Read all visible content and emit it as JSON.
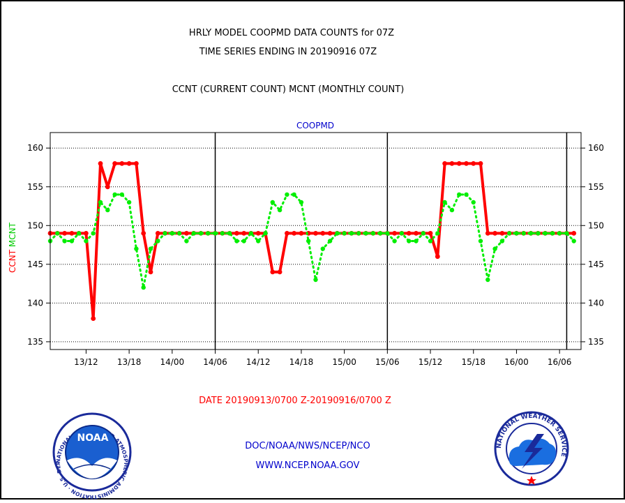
{
  "header": {
    "title_line1": "HRLY MODEL COOPMD DATA COUNTS for 07Z",
    "title_line2": "TIME SERIES ENDING IN 20190916 07Z",
    "subtitle": "CCNT (CURRENT COUNT) MCNT (MONTHLY COUNT)"
  },
  "footer": {
    "date_range": "DATE 20190913/0700 Z-20190916/0700 Z",
    "org_line": "DOC/NOAA/NWS/NCEP/NCO",
    "url": "WWW.NCEP.NOAA.GOV"
  },
  "logos": {
    "noaa_text": "NOAA",
    "noaa_ring_text": "NATIONAL OCEANIC AND ATMOSPHERIC ADMINISTRATION · U.S. DEPARTMENT OF COMMERCE",
    "nws_ring_text": "NATIONAL WEATHER SERVICE"
  },
  "colors": {
    "ccnt": "#ff0000",
    "mcnt": "#00ee00",
    "plot_label": "#0000cc",
    "grid": "#000000"
  },
  "chart_data": {
    "type": "line",
    "title": "COOPMD",
    "ylabel_parts": [
      {
        "text": "CCNT",
        "color": "#ff0000"
      },
      {
        "text": "MCNT",
        "color": "#00ee00"
      }
    ],
    "xlabel": "DATE 20190913/0700 Z-20190916/0700 Z",
    "ylim": [
      134,
      162
    ],
    "yticks": [
      135,
      140,
      145,
      150,
      155,
      160
    ],
    "grid": true,
    "x_domain": [
      "13/07",
      "16/09"
    ],
    "xticks": [
      "13/12",
      "13/18",
      "14/00",
      "14/06",
      "14/12",
      "14/18",
      "15/00",
      "15/06",
      "15/12",
      "15/18",
      "16/00",
      "16/06"
    ],
    "day_boundaries": [
      "14/06",
      "15/06",
      "16/07"
    ],
    "x": [
      "13/07",
      "13/08",
      "13/09",
      "13/10",
      "13/11",
      "13/12",
      "13/13",
      "13/14",
      "13/15",
      "13/16",
      "13/17",
      "13/18",
      "13/19",
      "13/20",
      "13/21",
      "13/22",
      "13/23",
      "14/00",
      "14/01",
      "14/02",
      "14/03",
      "14/04",
      "14/05",
      "14/06",
      "14/07",
      "14/08",
      "14/09",
      "14/10",
      "14/11",
      "14/12",
      "14/13",
      "14/14",
      "14/15",
      "14/16",
      "14/17",
      "14/18",
      "14/19",
      "14/20",
      "14/21",
      "14/22",
      "14/23",
      "15/00",
      "15/01",
      "15/02",
      "15/03",
      "15/04",
      "15/05",
      "15/06",
      "15/07",
      "15/08",
      "15/09",
      "15/10",
      "15/11",
      "15/12",
      "15/13",
      "15/14",
      "15/15",
      "15/16",
      "15/17",
      "15/18",
      "15/19",
      "15/20",
      "15/21",
      "15/22",
      "15/23",
      "16/00",
      "16/01",
      "16/02",
      "16/03",
      "16/04",
      "16/05",
      "16/06",
      "16/07",
      "16/08"
    ],
    "series": [
      {
        "name": "CCNT",
        "color": "#ff0000",
        "style": "solid",
        "values": [
          149,
          149,
          149,
          149,
          149,
          149,
          138,
          158,
          155,
          158,
          158,
          158,
          158,
          149,
          144,
          149,
          149,
          149,
          149,
          149,
          149,
          149,
          149,
          149,
          149,
          149,
          149,
          149,
          149,
          149,
          149,
          144,
          144,
          149,
          149,
          149,
          149,
          149,
          149,
          149,
          149,
          149,
          149,
          149,
          149,
          149,
          149,
          149,
          149,
          149,
          149,
          149,
          149,
          149,
          146,
          158,
          158,
          158,
          158,
          158,
          158,
          149,
          149,
          149,
          149,
          149,
          149,
          149,
          149,
          149,
          149,
          149,
          149,
          149
        ]
      },
      {
        "name": "MCNT",
        "color": "#00ee00",
        "style": "dotted",
        "values": [
          148,
          149,
          148,
          148,
          149,
          148,
          149,
          153,
          152,
          154,
          154,
          153,
          147,
          142,
          147,
          148,
          149,
          149,
          149,
          148,
          149,
          149,
          149,
          149,
          149,
          149,
          148,
          148,
          149,
          148,
          149,
          153,
          152,
          154,
          154,
          153,
          148,
          143,
          147,
          148,
          149,
          149,
          149,
          149,
          149,
          149,
          149,
          149,
          148,
          149,
          148,
          148,
          149,
          148,
          149,
          153,
          152,
          154,
          154,
          153,
          148,
          143,
          147,
          148,
          149,
          149,
          149,
          149,
          149,
          149,
          149,
          149,
          149,
          148
        ]
      }
    ]
  }
}
